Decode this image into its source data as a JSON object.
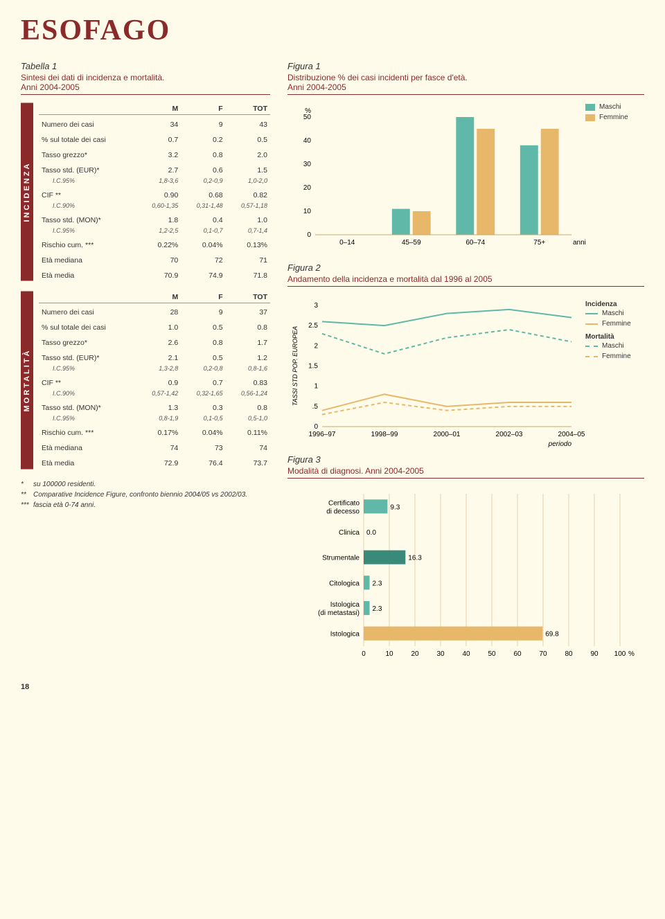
{
  "page_title": "ESOFAGO",
  "page_number": "18",
  "colors": {
    "brand": "#8b2a2a",
    "male": "#5fb8a8",
    "female": "#e8b86a",
    "bg": "#fffbeb",
    "grid": "#c8a868",
    "text": "#333333"
  },
  "tabella1": {
    "label": "Tabella 1",
    "subtitle": "Sintesi dei dati di incidenza e mortalità.",
    "period": "Anni 2004-2005"
  },
  "incidenza": {
    "vlabel": "INCIDENZA",
    "headers": [
      "",
      "M",
      "F",
      "TOT"
    ],
    "rows": [
      {
        "label": "Numero dei casi",
        "m": "34",
        "f": "9",
        "t": "43"
      },
      {
        "label": "% sul totale dei casi",
        "m": "0.7",
        "f": "0.2",
        "t": "0.5"
      },
      {
        "label": "Tasso grezzo*",
        "m": "3.2",
        "f": "0.8",
        "t": "2.0"
      },
      {
        "label": "Tasso std. (EUR)*",
        "m": "2.7",
        "f": "0.6",
        "t": "1.5"
      },
      {
        "ci": true,
        "label": "I.C.95%",
        "m": "1,8-3,6",
        "f": "0,2-0,9",
        "t": "1,0-2,0"
      },
      {
        "label": "CIF **",
        "m": "0.90",
        "f": "0.68",
        "t": "0.82"
      },
      {
        "ci": true,
        "label": "I.C.90%",
        "m": "0,60-1,35",
        "f": "0,31-1,48",
        "t": "0,57-1,18"
      },
      {
        "label": "Tasso std. (MON)*",
        "m": "1.8",
        "f": "0.4",
        "t": "1.0"
      },
      {
        "ci": true,
        "label": "I.C.95%",
        "m": "1,2-2,5",
        "f": "0,1-0,7",
        "t": "0,7-1,4"
      },
      {
        "label": "Rischio cum. ***",
        "m": "0.22%",
        "f": "0.04%",
        "t": "0.13%"
      },
      {
        "label": "Età mediana",
        "m": "70",
        "f": "72",
        "t": "71"
      },
      {
        "label": "Età media",
        "m": "70.9",
        "f": "74.9",
        "t": "71.8"
      }
    ]
  },
  "mortalita": {
    "vlabel": "MORTALITÀ",
    "headers": [
      "",
      "M",
      "F",
      "TOT"
    ],
    "rows": [
      {
        "label": "Numero dei casi",
        "m": "28",
        "f": "9",
        "t": "37"
      },
      {
        "label": "% sul totale dei casi",
        "m": "1.0",
        "f": "0.5",
        "t": "0.8"
      },
      {
        "label": "Tasso grezzo*",
        "m": "2.6",
        "f": "0.8",
        "t": "1.7"
      },
      {
        "label": "Tasso std. (EUR)*",
        "m": "2.1",
        "f": "0.5",
        "t": "1.2"
      },
      {
        "ci": true,
        "label": "I.C.95%",
        "m": "1,3-2,8",
        "f": "0,2-0,8",
        "t": "0,8-1,6"
      },
      {
        "label": "CIF **",
        "m": "0.9",
        "f": "0.7",
        "t": "0.83"
      },
      {
        "ci": true,
        "label": "I.C.90%",
        "m": "0,57-1,42",
        "f": "0,32-1,65",
        "t": "0,56-1,24"
      },
      {
        "label": "Tasso std. (MON)*",
        "m": "1.3",
        "f": "0.3",
        "t": "0.8"
      },
      {
        "ci": true,
        "label": "I.C.95%",
        "m": "0,8-1,9",
        "f": "0,1-0,5",
        "t": "0,5-1,0"
      },
      {
        "label": "Rischio cum. ***",
        "m": "0.17%",
        "f": "0.04%",
        "t": "0.11%"
      },
      {
        "label": "Età mediana",
        "m": "74",
        "f": "73",
        "t": "74"
      },
      {
        "label": "Età media",
        "m": "72.9",
        "f": "76.4",
        "t": "73.7"
      }
    ]
  },
  "footnotes": [
    {
      "mark": "*",
      "text": "su 100000 residenti."
    },
    {
      "mark": "**",
      "text": "Comparative Incidence Figure, confronto biennio 2004/05 vs 2002/03."
    },
    {
      "mark": "***",
      "text": "fascia età 0-74 anni."
    }
  ],
  "figura1": {
    "label": "Figura 1",
    "subtitle": "Distribuzione % dei casi incidenti per fasce d'età.",
    "period": "Anni 2004-2005",
    "type": "bar",
    "legend": [
      {
        "label": "Maschi",
        "color": "#5fb8a8"
      },
      {
        "label": "Femmine",
        "color": "#e8b86a"
      }
    ],
    "y_axis": {
      "label": "%",
      "ticks": [
        0,
        10,
        20,
        30,
        40,
        50
      ],
      "max": 50
    },
    "x_axis": {
      "label": "anni",
      "categories": [
        "0–14",
        "45–59",
        "60–74",
        "75+"
      ]
    },
    "series": {
      "maschi": [
        0,
        11,
        50,
        38
      ],
      "femmine": [
        0,
        10,
        45,
        45
      ]
    },
    "bar_colors": {
      "maschi": "#5fb8a8",
      "femmine": "#e8b86a"
    },
    "grid_color": "#c8a868",
    "background": "#fffbeb"
  },
  "figura2": {
    "label": "Figura 2",
    "subtitle": "Andamento della incidenza e mortalità dal 1996 al 2005",
    "type": "line",
    "y_axis": {
      "label": "TASSI STD POP. EUROPEA",
      "ticks": [
        0,
        0.5,
        1,
        1.5,
        2,
        2.5,
        3
      ],
      "max": 3
    },
    "x_axis": {
      "label": "periodo",
      "categories": [
        "1996–97",
        "1998–99",
        "2000–01",
        "2002–03",
        "2004–05"
      ]
    },
    "series": [
      {
        "name": "Incidenza Maschi",
        "color": "#5fb8a8",
        "dash": false,
        "values": [
          2.6,
          2.5,
          2.8,
          2.9,
          2.7
        ]
      },
      {
        "name": "Incidenza Femmine",
        "color": "#e8b86a",
        "dash": false,
        "values": [
          0.4,
          0.8,
          0.5,
          0.6,
          0.6
        ]
      },
      {
        "name": "Mortalità Maschi",
        "color": "#5fb8a8",
        "dash": true,
        "values": [
          2.3,
          1.8,
          2.2,
          2.4,
          2.1
        ]
      },
      {
        "name": "Mortalità Femmine",
        "color": "#e8b86a",
        "dash": true,
        "values": [
          0.3,
          0.6,
          0.4,
          0.5,
          0.5
        ]
      }
    ],
    "legend_groups": [
      {
        "title": "Incidenza",
        "items": [
          {
            "label": "Maschi",
            "color": "#5fb8a8",
            "dash": false
          },
          {
            "label": "Femmine",
            "color": "#e8b86a",
            "dash": false
          }
        ]
      },
      {
        "title": "Mortalità",
        "items": [
          {
            "label": "Maschi",
            "color": "#5fb8a8",
            "dash": true
          },
          {
            "label": "Femmine",
            "color": "#e8b86a",
            "dash": true
          }
        ]
      }
    ],
    "grid_color": "#c8a868"
  },
  "figura3": {
    "label": "Figura 3",
    "subtitle": "Modalità di diagnosi.",
    "period": "Anni 2004-2005",
    "type": "hbar",
    "x_axis": {
      "label": "%",
      "ticks": [
        0,
        10,
        20,
        30,
        40,
        50,
        60,
        70,
        80,
        90,
        100
      ],
      "max": 100
    },
    "categories": [
      "Certificato di decesso",
      "Clinica",
      "Strumentale",
      "Citologica",
      "Istologica (di metastasi)",
      "Istologica"
    ],
    "values": [
      9.3,
      0.0,
      16.3,
      2.3,
      2.3,
      69.8
    ],
    "colors": [
      "#5fb8a8",
      "#5fb8a8",
      "#3a8a7a",
      "#5fb8a8",
      "#5fb8a8",
      "#e8b86a"
    ],
    "grid_color": "#c8a868"
  }
}
